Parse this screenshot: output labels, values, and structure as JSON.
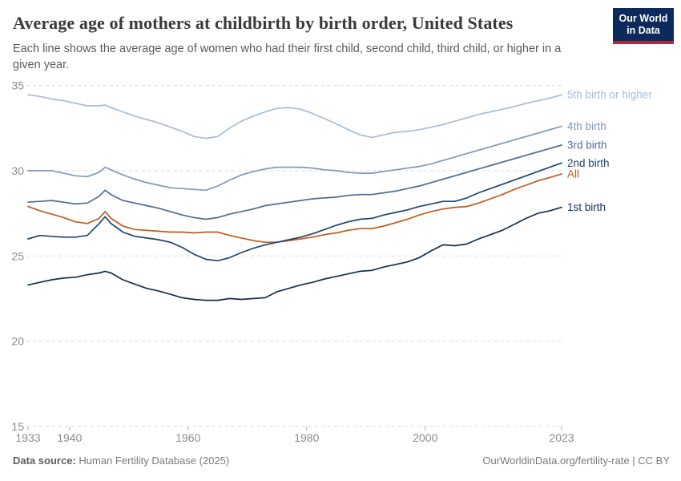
{
  "header": {
    "title": "Average age of mothers at childbirth by birth order, United States",
    "subtitle": "Each line shows the average age of women who had their first child, second child, third child, or higher in a given year.",
    "logo": {
      "line1": "Our World",
      "line2": "in Data"
    }
  },
  "footer": {
    "source_label": "Data source:",
    "source_value": "Human Fertility Database (2025)",
    "credit": "OurWorldinData.org/fertility-rate | CC BY"
  },
  "colors": {
    "grid": "#dadada",
    "axis_text": "#8b8b8b",
    "tick": "#b3b3b3",
    "logo_bg": "#0d2a5c",
    "logo_red": "#a52c3b"
  },
  "chart_data": {
    "type": "line",
    "title": "Average age of mothers at childbirth by birth order, United States",
    "xlabel": "",
    "ylabel": "",
    "xlim": [
      1933,
      2023
    ],
    "ylim": [
      15,
      35
    ],
    "xticks": [
      1933,
      1940,
      1960,
      1980,
      2000,
      2023
    ],
    "yticks": [
      15,
      20,
      25,
      30,
      35
    ],
    "grid": "horizontal-dashed",
    "legend_position": "right-end-labels",
    "x": [
      1933,
      1935,
      1937,
      1939,
      1941,
      1943,
      1945,
      1946,
      1947,
      1949,
      1951,
      1953,
      1955,
      1957,
      1959,
      1961,
      1963,
      1965,
      1967,
      1969,
      1971,
      1973,
      1975,
      1977,
      1979,
      1981,
      1983,
      1985,
      1987,
      1989,
      1991,
      1993,
      1995,
      1997,
      1999,
      2001,
      2003,
      2005,
      2007,
      2009,
      2011,
      2013,
      2015,
      2017,
      2019,
      2021,
      2023
    ],
    "series": [
      {
        "name": "5th birth or higher",
        "color": "#a8bcd6",
        "values": [
          34.45,
          34.35,
          34.2,
          34.1,
          33.95,
          33.8,
          33.8,
          33.85,
          33.7,
          33.45,
          33.2,
          33.0,
          32.8,
          32.55,
          32.3,
          32.0,
          31.9,
          32.0,
          32.5,
          32.9,
          33.2,
          33.45,
          33.65,
          33.7,
          33.6,
          33.35,
          33.05,
          32.75,
          32.4,
          32.1,
          31.95,
          32.1,
          32.25,
          32.3,
          32.4,
          32.55,
          32.7,
          32.9,
          33.1,
          33.3,
          33.45,
          33.6,
          33.75,
          33.95,
          34.1,
          34.25,
          34.45
        ]
      },
      {
        "name": "4th birth",
        "color": "#7e98ba",
        "values": [
          30.0,
          30.0,
          30.0,
          29.85,
          29.7,
          29.65,
          29.9,
          30.2,
          30.05,
          29.75,
          29.5,
          29.3,
          29.15,
          29.0,
          28.95,
          28.9,
          28.85,
          29.1,
          29.45,
          29.75,
          29.95,
          30.1,
          30.2,
          30.2,
          30.2,
          30.15,
          30.05,
          30.0,
          29.9,
          29.85,
          29.85,
          29.95,
          30.05,
          30.15,
          30.25,
          30.4,
          30.6,
          30.8,
          31.0,
          31.2,
          31.4,
          31.6,
          31.8,
          32.0,
          32.2,
          32.4,
          32.6
        ]
      },
      {
        "name": "3rd birth",
        "color": "#4d6d96",
        "values": [
          28.15,
          28.2,
          28.25,
          28.15,
          28.05,
          28.1,
          28.5,
          28.85,
          28.6,
          28.25,
          28.1,
          27.95,
          27.8,
          27.6,
          27.4,
          27.25,
          27.15,
          27.25,
          27.45,
          27.6,
          27.75,
          27.95,
          28.05,
          28.15,
          28.25,
          28.35,
          28.4,
          28.45,
          28.55,
          28.6,
          28.6,
          28.7,
          28.8,
          28.95,
          29.1,
          29.3,
          29.5,
          29.7,
          29.9,
          30.1,
          30.3,
          30.5,
          30.7,
          30.9,
          31.1,
          31.3,
          31.5
        ]
      },
      {
        "name": "All",
        "color": "#c25a1d",
        "values": [
          27.9,
          27.65,
          27.45,
          27.25,
          27.0,
          26.9,
          27.2,
          27.6,
          27.2,
          26.75,
          26.55,
          26.5,
          26.45,
          26.4,
          26.4,
          26.35,
          26.4,
          26.4,
          26.2,
          26.05,
          25.9,
          25.8,
          25.8,
          25.9,
          26.0,
          26.1,
          26.25,
          26.35,
          26.5,
          26.6,
          26.6,
          26.75,
          26.95,
          27.15,
          27.4,
          27.6,
          27.75,
          27.85,
          27.9,
          28.1,
          28.35,
          28.6,
          28.9,
          29.15,
          29.4,
          29.6,
          29.8
        ]
      },
      {
        "name": "2nd birth",
        "color": "#20456e",
        "values": [
          26.0,
          26.2,
          26.15,
          26.1,
          26.1,
          26.2,
          26.9,
          27.3,
          26.9,
          26.4,
          26.15,
          26.05,
          25.95,
          25.8,
          25.5,
          25.1,
          24.8,
          24.72,
          24.9,
          25.2,
          25.45,
          25.65,
          25.8,
          25.95,
          26.1,
          26.3,
          26.55,
          26.8,
          27.0,
          27.15,
          27.2,
          27.4,
          27.55,
          27.7,
          27.9,
          28.05,
          28.2,
          28.2,
          28.4,
          28.7,
          28.95,
          29.2,
          29.45,
          29.7,
          29.95,
          30.2,
          30.45
        ]
      },
      {
        "name": "1st birth",
        "color": "#12304e",
        "values": [
          23.3,
          23.45,
          23.6,
          23.7,
          23.75,
          23.9,
          24.0,
          24.1,
          24.0,
          23.6,
          23.35,
          23.1,
          22.95,
          22.75,
          22.55,
          22.45,
          22.4,
          22.4,
          22.5,
          22.45,
          22.5,
          22.55,
          22.9,
          23.1,
          23.3,
          23.45,
          23.65,
          23.8,
          23.95,
          24.1,
          24.15,
          24.35,
          24.5,
          24.65,
          24.9,
          25.3,
          25.65,
          25.6,
          25.7,
          26.0,
          26.25,
          26.5,
          26.85,
          27.2,
          27.5,
          27.65,
          27.85
        ]
      }
    ]
  }
}
